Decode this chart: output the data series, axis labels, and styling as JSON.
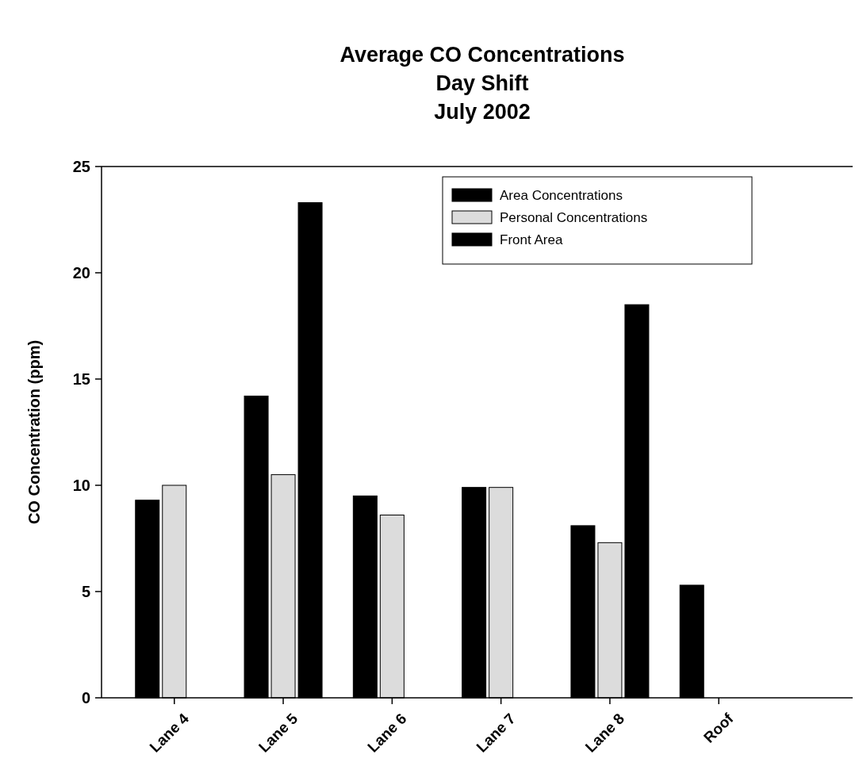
{
  "chart_data": {
    "type": "bar",
    "title": "Average CO Concentrations\nDay Shift\nJuly 2002",
    "ylabel": "CO Concentration (ppm)",
    "categories": [
      "Lane 4",
      "Lane 5",
      "Lane 6",
      "Lane 7",
      "Lane 8",
      "Roof"
    ],
    "series": [
      {
        "name": "Area Concentrations",
        "color": "#000000",
        "values": [
          9.3,
          14.2,
          9.5,
          9.9,
          8.1,
          5.3
        ]
      },
      {
        "name": "Personal Concentrations",
        "color": "#dcdcdc",
        "values": [
          10.0,
          10.5,
          8.6,
          9.9,
          7.3,
          null
        ]
      },
      {
        "name": "Front Area",
        "color": "#000000",
        "values": [
          null,
          23.3,
          null,
          null,
          18.5,
          null
        ]
      }
    ],
    "ylim": [
      0,
      25
    ],
    "yticks": [
      0,
      5,
      10,
      15,
      20,
      25
    ],
    "grid": false,
    "legend": "top right"
  }
}
